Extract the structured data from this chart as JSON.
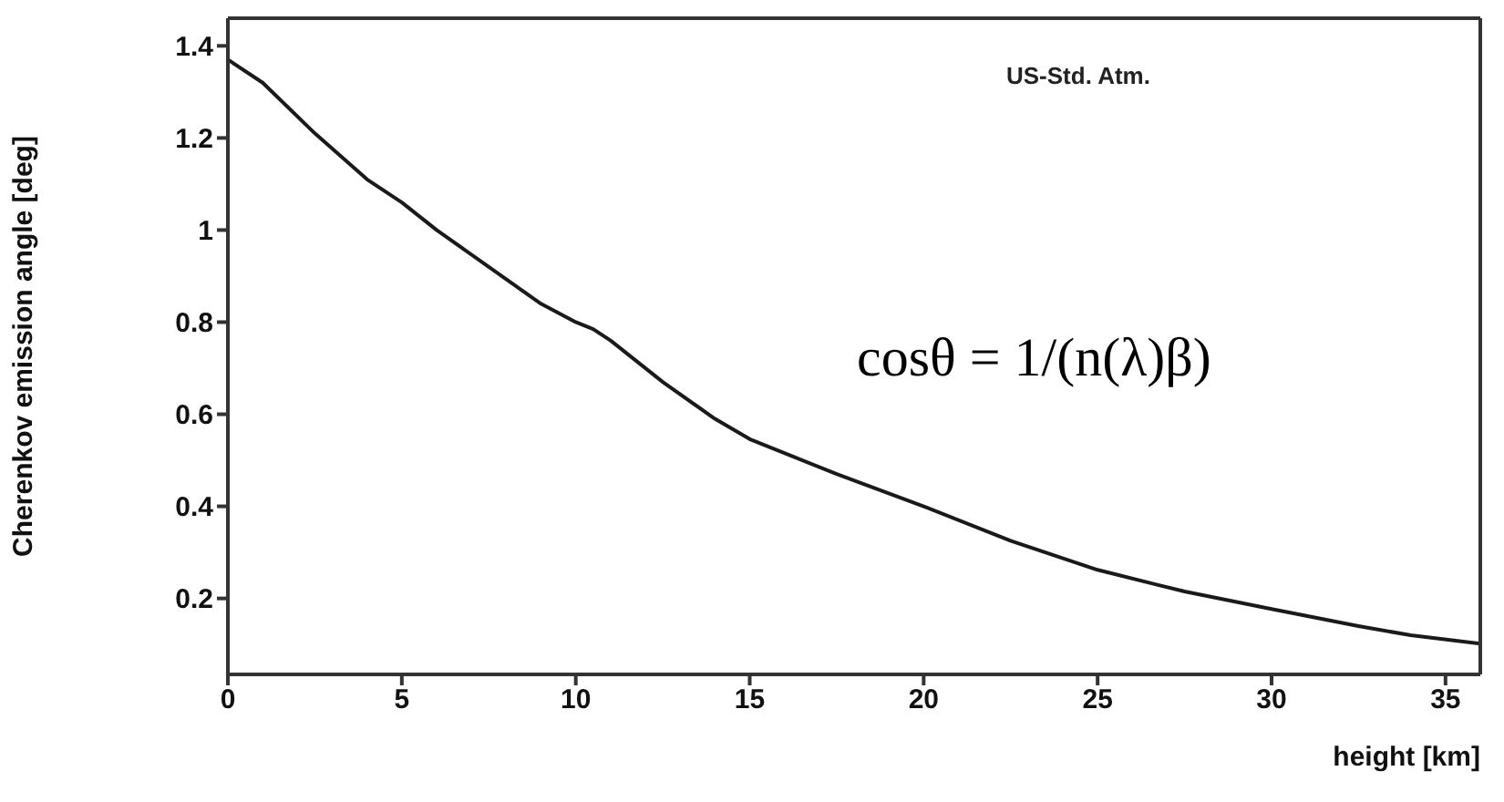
{
  "chart_data": {
    "type": "line",
    "xlabel": "height [km]",
    "ylabel": "Cherenkov emission angle [deg]",
    "annotations": [
      "US-Std. Atm.",
      "cosθ = 1/(n(λ)β)"
    ],
    "x": [
      0,
      1,
      2.5,
      4,
      5,
      6,
      7.5,
      9,
      10,
      10.5,
      11,
      12.5,
      14,
      15,
      17.5,
      20,
      22.5,
      25,
      27.5,
      30,
      32.5,
      34,
      36
    ],
    "series": [
      {
        "color": "#1a1a1a",
        "values": [
          1.37,
          1.32,
          1.21,
          1.11,
          1.06,
          1.0,
          0.92,
          0.84,
          0.8,
          0.785,
          0.76,
          0.67,
          0.59,
          0.546,
          0.47,
          0.4,
          0.325,
          0.262,
          0.215,
          0.177,
          0.14,
          0.12,
          0.102
        ]
      }
    ],
    "xlim": [
      0,
      36
    ],
    "xticks": [
      0,
      5,
      10,
      15,
      20,
      25,
      30,
      35
    ],
    "ylim": [
      0.035,
      1.46
    ],
    "yticks": [
      0.2,
      0.4,
      0.6,
      0.8,
      1,
      1.2,
      1.4
    ],
    "marker": "none",
    "line_style": "solid"
  }
}
